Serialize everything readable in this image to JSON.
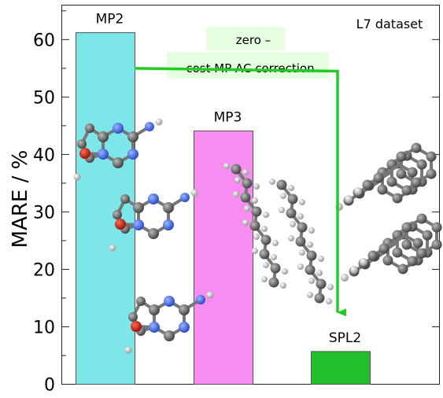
{
  "chart_data": {
    "type": "bar",
    "categories": [
      "MP2",
      "MP3",
      "SPL2"
    ],
    "values": [
      61.2,
      44.1,
      5.7
    ],
    "colors": [
      "#7de6e8",
      "#f98cf0",
      "#22bf2c"
    ],
    "ylabel": "MARE / %",
    "ylim": [
      0,
      66
    ],
    "yticks": [
      0,
      10,
      20,
      30,
      40,
      50,
      60
    ],
    "grid": false,
    "corner_label": "L7 dataset",
    "annotation": {
      "line1": "zero –",
      "line2": "cost MP AC correction",
      "from": "MP2",
      "to": "SPL2",
      "arrow_color": "#22cc22"
    },
    "molecule_icons": [
      "dimer-molecule-images",
      "alkane-dimer-molecule-images",
      "coronene-dimer-molecule-images"
    ]
  }
}
